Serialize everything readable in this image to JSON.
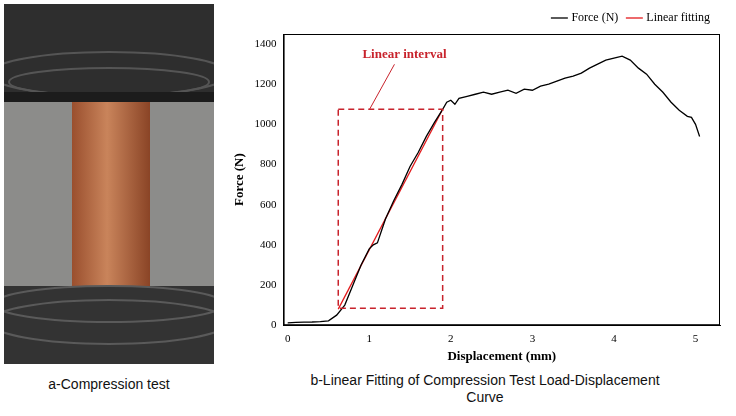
{
  "photo": {
    "caption": "a-Compression test"
  },
  "chart_data": {
    "type": "line",
    "title": "b-Linear Fitting of Compression Test Load-Displacement Curve",
    "x_label": "Displacement (mm)",
    "y_label": "Force (N)",
    "xlim": [
      -0.05,
      5.3
    ],
    "xticks": [
      0,
      1,
      2,
      3,
      4,
      5
    ],
    "ylim": [
      0,
      1450
    ],
    "yticks": [
      0,
      200,
      400,
      600,
      800,
      1000,
      1200,
      1400
    ],
    "grid": false,
    "legend": "top",
    "series": [
      {
        "name": "Force (N)",
        "color": "#000000",
        "x": [
          0,
          0.1,
          0.2,
          0.3,
          0.4,
          0.5,
          0.6,
          0.7,
          0.8,
          0.9,
          1.0,
          1.05,
          1.1,
          1.15,
          1.2,
          1.3,
          1.4,
          1.5,
          1.6,
          1.7,
          1.8,
          1.9,
          1.95,
          2.0,
          2.05,
          2.1,
          2.2,
          2.3,
          2.4,
          2.5,
          2.6,
          2.7,
          2.8,
          2.9,
          3.0,
          3.1,
          3.2,
          3.3,
          3.4,
          3.5,
          3.6,
          3.7,
          3.8,
          3.9,
          4.0,
          4.1,
          4.2,
          4.3,
          4.4,
          4.5,
          4.6,
          4.7,
          4.8,
          4.9,
          4.95,
          5.0,
          5.05
        ],
        "values": [
          12,
          14,
          15,
          16,
          18,
          22,
          50,
          100,
          200,
          300,
          380,
          400,
          410,
          470,
          530,
          620,
          700,
          790,
          860,
          940,
          1010,
          1075,
          1110,
          1120,
          1100,
          1130,
          1140,
          1150,
          1160,
          1150,
          1160,
          1170,
          1155,
          1175,
          1170,
          1190,
          1200,
          1215,
          1230,
          1240,
          1255,
          1280,
          1300,
          1320,
          1330,
          1340,
          1320,
          1280,
          1250,
          1200,
          1160,
          1110,
          1070,
          1040,
          1035,
          1000,
          940
        ]
      },
      {
        "name": "Linear fitting",
        "color": "#e31a1c",
        "x": [
          0.62,
          1.9
        ],
        "values": [
          80,
          1075
        ]
      }
    ],
    "annotations": [
      {
        "text": "Linear interval",
        "color": "#c8232c",
        "line_style": "dashed",
        "box": {
          "x": [
            0.62,
            1.9
          ],
          "y": [
            85,
            1075
          ]
        }
      }
    ]
  }
}
